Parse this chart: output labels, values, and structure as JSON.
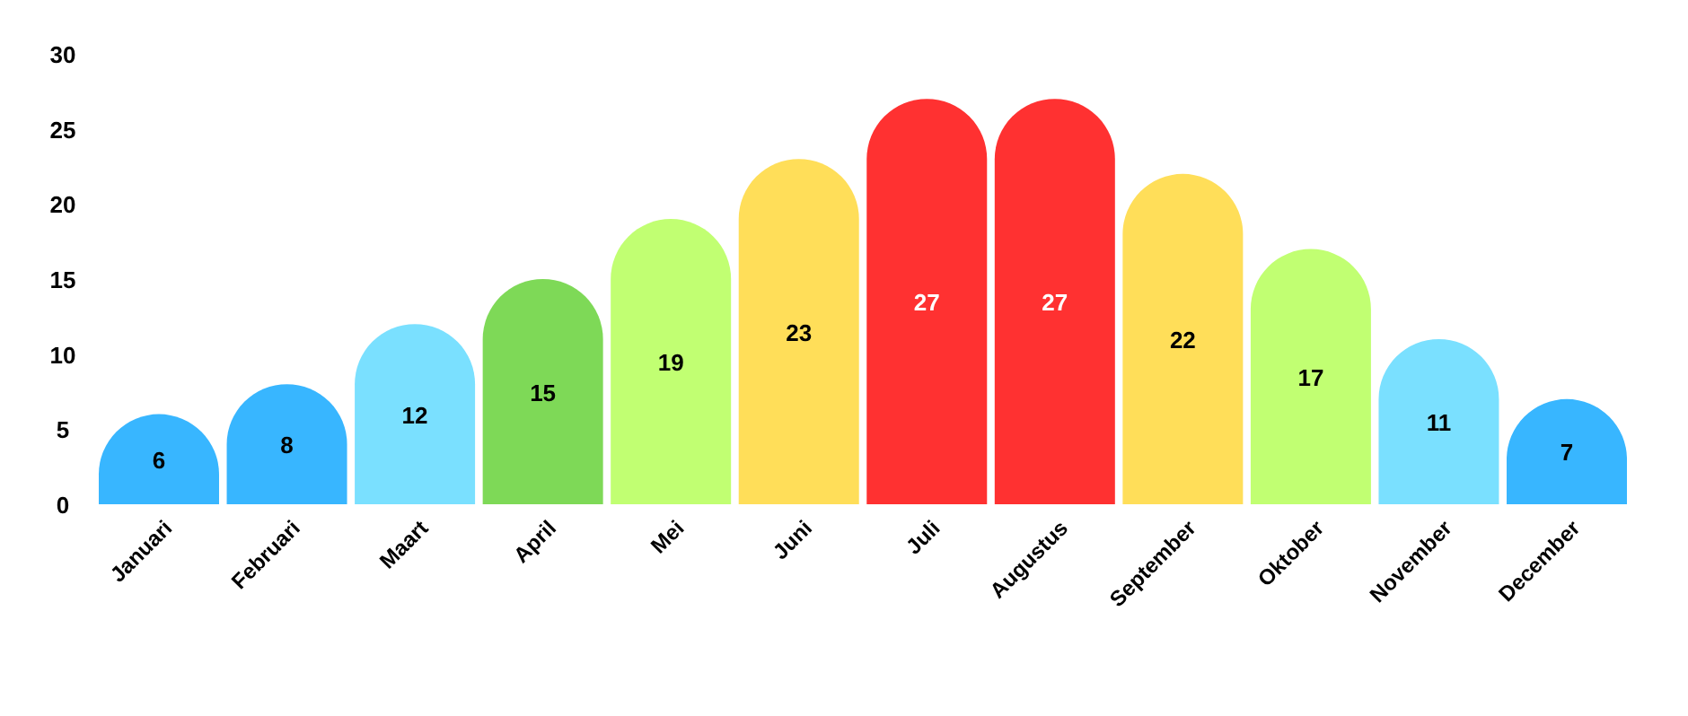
{
  "chart_data": {
    "type": "bar",
    "categories": [
      "Januari",
      "Februari",
      "Maart",
      "April",
      "Mei",
      "Juni",
      "Juli",
      "Augustus",
      "September",
      "Oktober",
      "November",
      "December"
    ],
    "values": [
      6,
      8,
      12,
      15,
      19,
      23,
      27,
      27,
      22,
      17,
      11,
      7
    ],
    "colors": [
      "#38b6ff",
      "#38b6ff",
      "#7ae0ff",
      "#7ed957",
      "#c1ff72",
      "#ffde59",
      "#ff3131",
      "#ff3131",
      "#ffde59",
      "#c1ff72",
      "#7ae0ff",
      "#38b6ff"
    ],
    "ylim": [
      0,
      30
    ],
    "yticks": [
      0,
      5,
      10,
      15,
      20,
      25,
      30
    ],
    "data_labels": true
  }
}
